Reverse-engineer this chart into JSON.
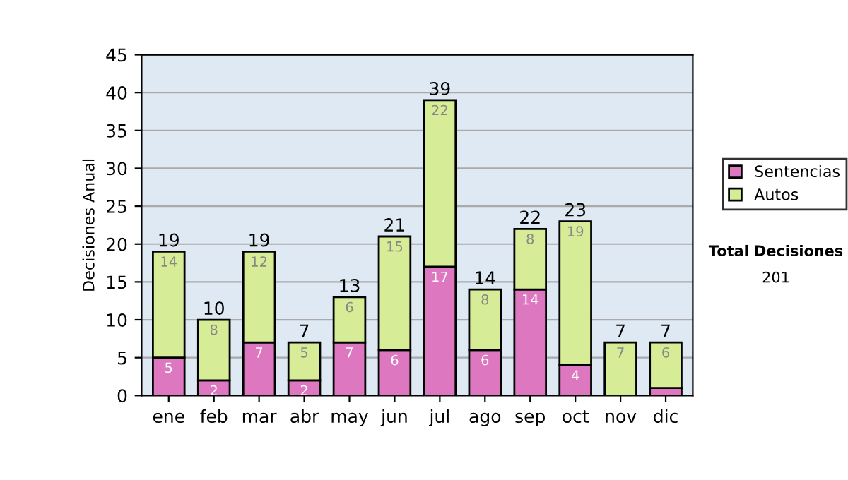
{
  "chart_data": {
    "type": "bar",
    "stacked": true,
    "ylabel": "Decisiones Anual",
    "categories": [
      "ene",
      "feb",
      "mar",
      "abr",
      "may",
      "jun",
      "jul",
      "ago",
      "sep",
      "oct",
      "nov",
      "dic"
    ],
    "series": [
      {
        "name": "Sentencias",
        "color": "#dd77c0",
        "values": [
          5,
          2,
          7,
          2,
          7,
          6,
          17,
          6,
          14,
          4,
          0,
          1
        ],
        "value_labels": [
          "5",
          "2",
          "7",
          "2",
          "7",
          "6",
          "17",
          "6",
          "14",
          "4",
          null,
          null
        ]
      },
      {
        "name": "Autos",
        "color": "#d6ec96",
        "values": [
          14,
          8,
          12,
          5,
          6,
          15,
          22,
          8,
          8,
          19,
          7,
          6
        ],
        "value_labels": [
          "14",
          "8",
          "12",
          "5",
          "6",
          "15",
          "22",
          "8",
          "8",
          "19",
          "7",
          "6"
        ]
      }
    ],
    "totals": [
      "19",
      "10",
      "19",
      "7",
      "13",
      "21",
      "39",
      "14",
      "22",
      "23",
      "7",
      "7"
    ],
    "ylim": [
      0,
      45
    ],
    "yticks": [
      0,
      5,
      10,
      15,
      20,
      25,
      30,
      35,
      40,
      45
    ],
    "grid": "y",
    "legend": "right",
    "annotations": [
      "Total Decisiones",
      "201"
    ]
  }
}
